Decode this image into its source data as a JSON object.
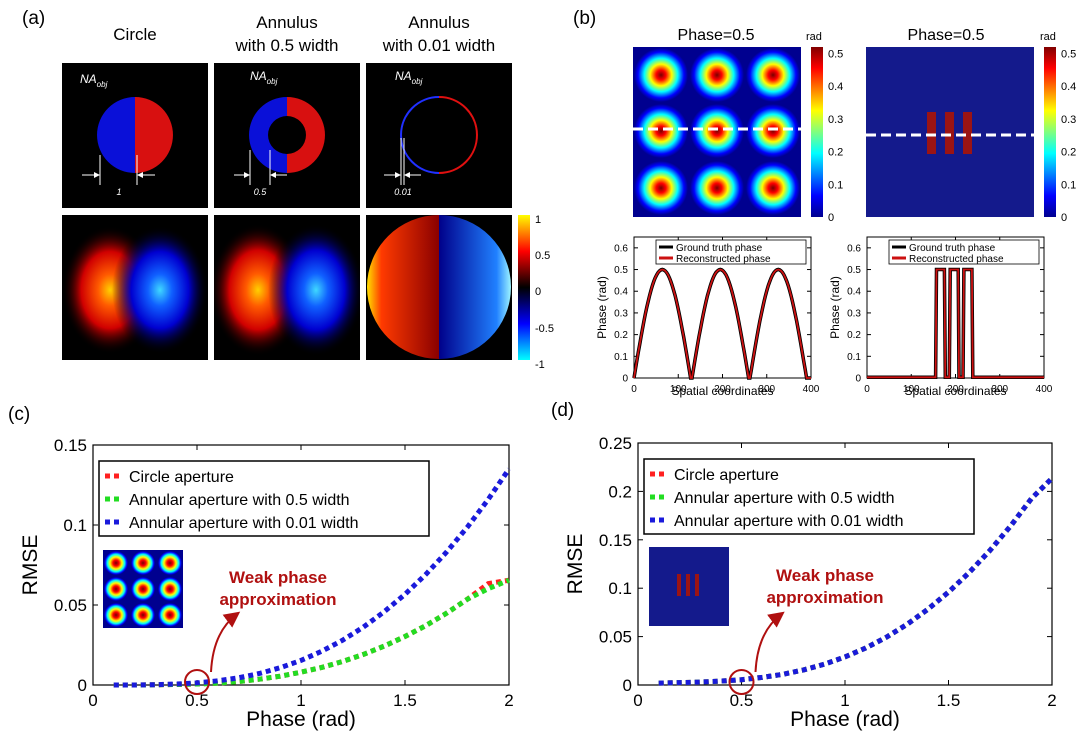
{
  "panel_labels": {
    "a": "(a)",
    "b": "(b)",
    "c": "(c)",
    "d": "(d)"
  },
  "panel_a": {
    "columns": [
      {
        "title_lines": [
          "Circle"
        ],
        "width_label": "1"
      },
      {
        "title_lines": [
          "Annulus",
          "with 0.5 width"
        ],
        "width_label": "0.5"
      },
      {
        "title_lines": [
          "Annulus",
          "with 0.01 width"
        ],
        "width_label": "0.01"
      }
    ],
    "na_main": "NA",
    "na_sub": "obj",
    "colorbar": {
      "ticks": [
        "1",
        "0.5",
        "0",
        "-0.5",
        "-1"
      ]
    }
  },
  "panel_b": {
    "maps": [
      {
        "title": "Phase=0.5"
      },
      {
        "title": "Phase=0.5"
      }
    ],
    "colorbar_unit": "rad",
    "colorbar_ticks": [
      "0.5",
      "0.4",
      "0.3",
      "0.2",
      "0.1",
      "0"
    ]
  },
  "chart_data": [
    {
      "id": "b-left-profile",
      "type": "line",
      "xlabel": "Spatial coordinates",
      "ylabel": "Phase (rad)",
      "xlim": [
        0,
        400
      ],
      "ylim": [
        0,
        0.65
      ],
      "xticks": [
        "0",
        "100",
        "200",
        "300",
        "400"
      ],
      "yticks": [
        "0",
        "0.1",
        "0.2",
        "0.3",
        "0.4",
        "0.5",
        "0.6"
      ],
      "legend": [
        "Ground truth phase",
        "Reconstructed phase"
      ],
      "series": [
        {
          "name": "Ground truth phase",
          "color": "#000000",
          "shape": "dome",
          "domes": [
            [
              0,
              128
            ],
            [
              131,
              259
            ],
            [
              262,
              390
            ]
          ],
          "peak": 0.5
        },
        {
          "name": "Reconstructed phase",
          "color": "#cc1111",
          "shape": "dome",
          "domes": [
            [
              0,
              128
            ],
            [
              131,
              259
            ],
            [
              262,
              390
            ]
          ],
          "peak": 0.5
        }
      ]
    },
    {
      "id": "b-right-profile",
      "type": "line",
      "xlabel": "Spatial coordinates",
      "ylabel": "Phase (rad)",
      "xlim": [
        0,
        400
      ],
      "ylim": [
        0,
        0.65
      ],
      "xticks": [
        "0",
        "100",
        "200",
        "300",
        "400"
      ],
      "yticks": [
        "0",
        "0.1",
        "0.2",
        "0.3",
        "0.4",
        "0.5",
        "0.6"
      ],
      "legend": [
        "Ground truth phase",
        "Reconstructed phase"
      ],
      "series": [
        {
          "name": "Ground truth phase",
          "color": "#000000",
          "shape": "rect",
          "bars": [
            [
              157,
              175
            ],
            [
              188,
              206
            ],
            [
              219,
              237
            ]
          ],
          "peak": 0.5
        },
        {
          "name": "Reconstructed phase",
          "color": "#cc1111",
          "shape": "rect",
          "bars": [
            [
              157,
              175
            ],
            [
              188,
              206
            ],
            [
              219,
              237
            ]
          ],
          "peak": 0.5
        }
      ]
    },
    {
      "id": "c",
      "type": "line",
      "xlabel": "Phase (rad)",
      "ylabel": "RMSE",
      "xlim": [
        0,
        2
      ],
      "ylim": [
        0,
        0.15
      ],
      "xticks": [
        "0",
        "0.5",
        "1",
        "1.5",
        "2"
      ],
      "yticks": [
        "0",
        "0.05",
        "0.1",
        "0.15"
      ],
      "legend": [
        "Circle aperture",
        "Annular aperture with 0.5 width",
        "Annular aperture with 0.01 width"
      ],
      "annotation": {
        "lines": [
          "Weak phase",
          "approximation"
        ],
        "x": 0.5
      },
      "series": [
        {
          "name": "Circle aperture",
          "color": "#ff2020",
          "x": [
            0.1,
            0.2,
            0.3,
            0.4,
            0.5,
            0.6,
            0.7,
            0.8,
            0.9,
            1.0,
            1.1,
            1.2,
            1.3,
            1.4,
            1.5,
            1.6,
            1.7,
            1.8,
            1.9,
            2.0
          ],
          "y": [
            0,
            0,
            0.0001,
            0.0003,
            0.0006,
            0.0012,
            0.0022,
            0.0036,
            0.0055,
            0.008,
            0.011,
            0.0147,
            0.0191,
            0.0243,
            0.0303,
            0.0371,
            0.0449,
            0.0536,
            0.0634,
            0.0655
          ]
        },
        {
          "name": "Annular aperture with 0.5 width",
          "color": "#22dd22",
          "x": [
            0.1,
            0.2,
            0.3,
            0.4,
            0.5,
            0.6,
            0.7,
            0.8,
            0.9,
            1.0,
            1.1,
            1.2,
            1.3,
            1.4,
            1.5,
            1.6,
            1.7,
            1.8,
            1.9,
            2.0
          ],
          "y": [
            0,
            0,
            0.0001,
            0.0003,
            0.0006,
            0.0012,
            0.0022,
            0.0036,
            0.0055,
            0.008,
            0.011,
            0.0147,
            0.0191,
            0.0243,
            0.0303,
            0.0371,
            0.0449,
            0.0536,
            0.0602,
            0.0655
          ]
        },
        {
          "name": "Annular aperture with 0.01 width",
          "color": "#1a1adb",
          "x": [
            0.1,
            0.2,
            0.3,
            0.4,
            0.5,
            0.6,
            0.7,
            0.8,
            0.9,
            1.0,
            1.1,
            1.2,
            1.3,
            1.4,
            1.5,
            1.6,
            1.7,
            1.8,
            1.9,
            2.0
          ],
          "y": [
            0,
            0,
            0.0002,
            0.0006,
            0.0013,
            0.0026,
            0.0045,
            0.0072,
            0.0108,
            0.0154,
            0.0211,
            0.028,
            0.0362,
            0.0458,
            0.0567,
            0.0691,
            0.0831,
            0.0987,
            0.116,
            0.135
          ]
        }
      ]
    },
    {
      "id": "d",
      "type": "line",
      "xlabel": "Phase (rad)",
      "ylabel": "RMSE",
      "xlim": [
        0,
        2
      ],
      "ylim": [
        0,
        0.25
      ],
      "xticks": [
        "0",
        "0.5",
        "1",
        "1.5",
        "2"
      ],
      "yticks": [
        "0",
        "0.05",
        "0.1",
        "0.15",
        "0.2",
        "0.25"
      ],
      "legend": [
        "Circle aperture",
        "Annular aperture with 0.5 width",
        "Annular aperture with 0.01 width"
      ],
      "annotation": {
        "lines": [
          "Weak phase",
          "approximation"
        ],
        "x": 0.5
      },
      "series": [
        {
          "name": "Circle aperture",
          "color": "#ff2020",
          "x": [
            0.1,
            0.2,
            0.3,
            0.4,
            0.5,
            0.6,
            0.7,
            0.8,
            0.9,
            1.0,
            1.1,
            1.2,
            1.3,
            1.4,
            1.5,
            1.6,
            1.7,
            1.8,
            1.9,
            2.0
          ],
          "y": [
            0.002,
            0.0025,
            0.003,
            0.004,
            0.0055,
            0.0078,
            0.0111,
            0.0156,
            0.0215,
            0.029,
            0.0382,
            0.0494,
            0.0627,
            0.0782,
            0.096,
            0.1162,
            0.1389,
            0.1643,
            0.1925,
            0.2135
          ]
        },
        {
          "name": "Annular aperture with 0.5 width",
          "color": "#22dd22",
          "x": [
            0.1,
            0.2,
            0.3,
            0.4,
            0.5,
            0.6,
            0.7,
            0.8,
            0.9,
            1.0,
            1.1,
            1.2,
            1.3,
            1.4,
            1.5,
            1.6,
            1.7,
            1.8,
            1.9,
            2.0
          ],
          "y": [
            0.002,
            0.0025,
            0.003,
            0.004,
            0.0055,
            0.0078,
            0.0111,
            0.0156,
            0.0215,
            0.029,
            0.0382,
            0.0494,
            0.0627,
            0.0782,
            0.096,
            0.1162,
            0.1389,
            0.1643,
            0.1925,
            0.2135
          ]
        },
        {
          "name": "Annular aperture with 0.01 width",
          "color": "#1a1adb",
          "x": [
            0.1,
            0.2,
            0.3,
            0.4,
            0.5,
            0.6,
            0.7,
            0.8,
            0.9,
            1.0,
            1.1,
            1.2,
            1.3,
            1.4,
            1.5,
            1.6,
            1.7,
            1.8,
            1.9,
            2.0
          ],
          "y": [
            0.002,
            0.0025,
            0.003,
            0.004,
            0.0055,
            0.0078,
            0.0111,
            0.0156,
            0.0215,
            0.029,
            0.0382,
            0.0494,
            0.0627,
            0.0782,
            0.096,
            0.1162,
            0.1389,
            0.1643,
            0.1925,
            0.2135
          ]
        }
      ]
    }
  ]
}
